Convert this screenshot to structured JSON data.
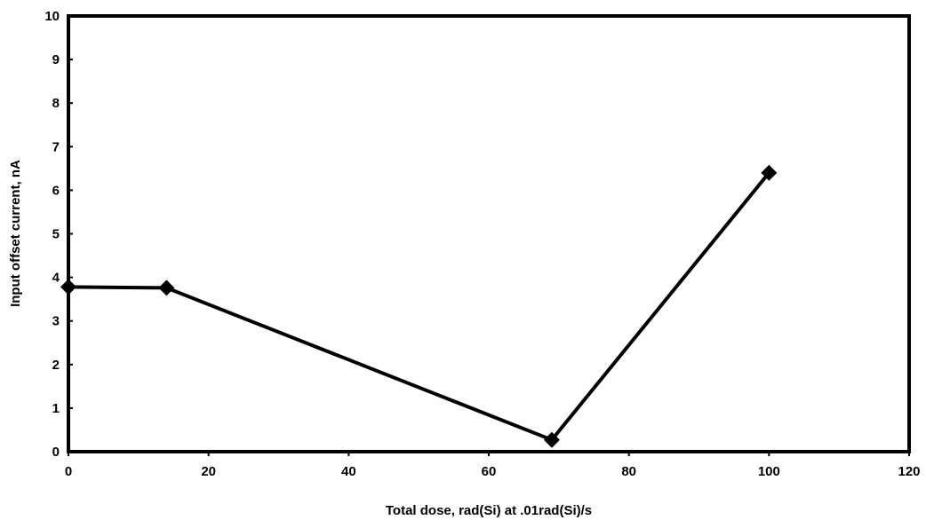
{
  "chart_data": {
    "type": "line",
    "title": "",
    "xlabel": "Total dose, rad(Si) at .01rad(Si)/s",
    "ylabel": "Input offset current, nA",
    "xlim": [
      0,
      120
    ],
    "ylim": [
      0,
      10
    ],
    "xticks": [
      "0",
      "20",
      "40",
      "60",
      "80",
      "100",
      "120"
    ],
    "yticks": [
      "0",
      "1",
      "2",
      "3",
      "4",
      "5",
      "6",
      "7",
      "8",
      "9",
      "10"
    ],
    "grid": false,
    "legend": "none",
    "marker": "diamond",
    "line_color": "#000000",
    "series": [
      {
        "x": [
          0,
          14,
          69,
          100
        ],
        "y": [
          3.78,
          3.76,
          0.27,
          6.4
        ]
      }
    ]
  }
}
